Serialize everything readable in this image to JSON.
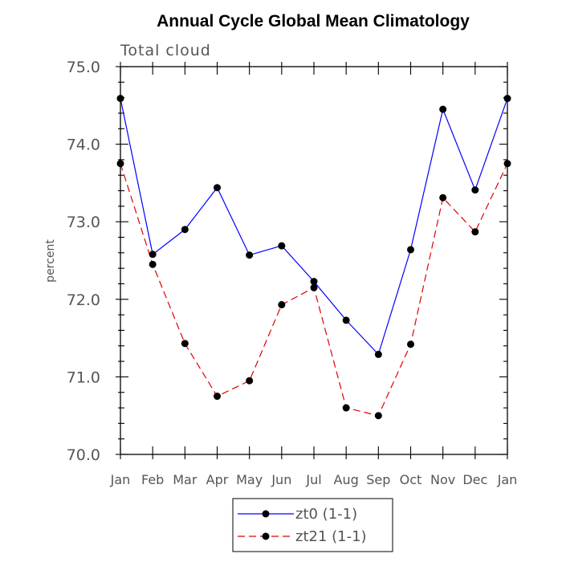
{
  "chart_data": {
    "type": "line",
    "title": "Annual Cycle Global Mean Climatology",
    "subtitle": "Total cloud",
    "xlabel": "",
    "ylabel": "percent",
    "ylim": [
      70.0,
      75.0
    ],
    "yticks": [
      70.0,
      71.0,
      72.0,
      73.0,
      74.0,
      75.0
    ],
    "ytick_labels": [
      "70.0",
      "71.0",
      "72.0",
      "73.0",
      "74.0",
      "75.0"
    ],
    "categories": [
      "Jan",
      "Feb",
      "Mar",
      "Apr",
      "May",
      "Jun",
      "Jul",
      "Aug",
      "Sep",
      "Oct",
      "Nov",
      "Dec",
      "Jan"
    ],
    "legend_position": "bottom-center",
    "series": [
      {
        "name": "zt0 (1-1)",
        "color": "#0000ff",
        "dash": "solid",
        "values": [
          74.59,
          72.58,
          72.9,
          73.44,
          72.57,
          72.69,
          72.23,
          71.73,
          71.29,
          72.64,
          74.45,
          73.41,
          74.59
        ]
      },
      {
        "name": "zt21 (1-1)",
        "color": "#e00000",
        "dash": "dashed",
        "values": [
          73.75,
          72.45,
          71.43,
          70.75,
          70.95,
          71.93,
          72.15,
          70.6,
          70.5,
          71.42,
          73.31,
          72.87,
          73.75
        ]
      }
    ]
  }
}
